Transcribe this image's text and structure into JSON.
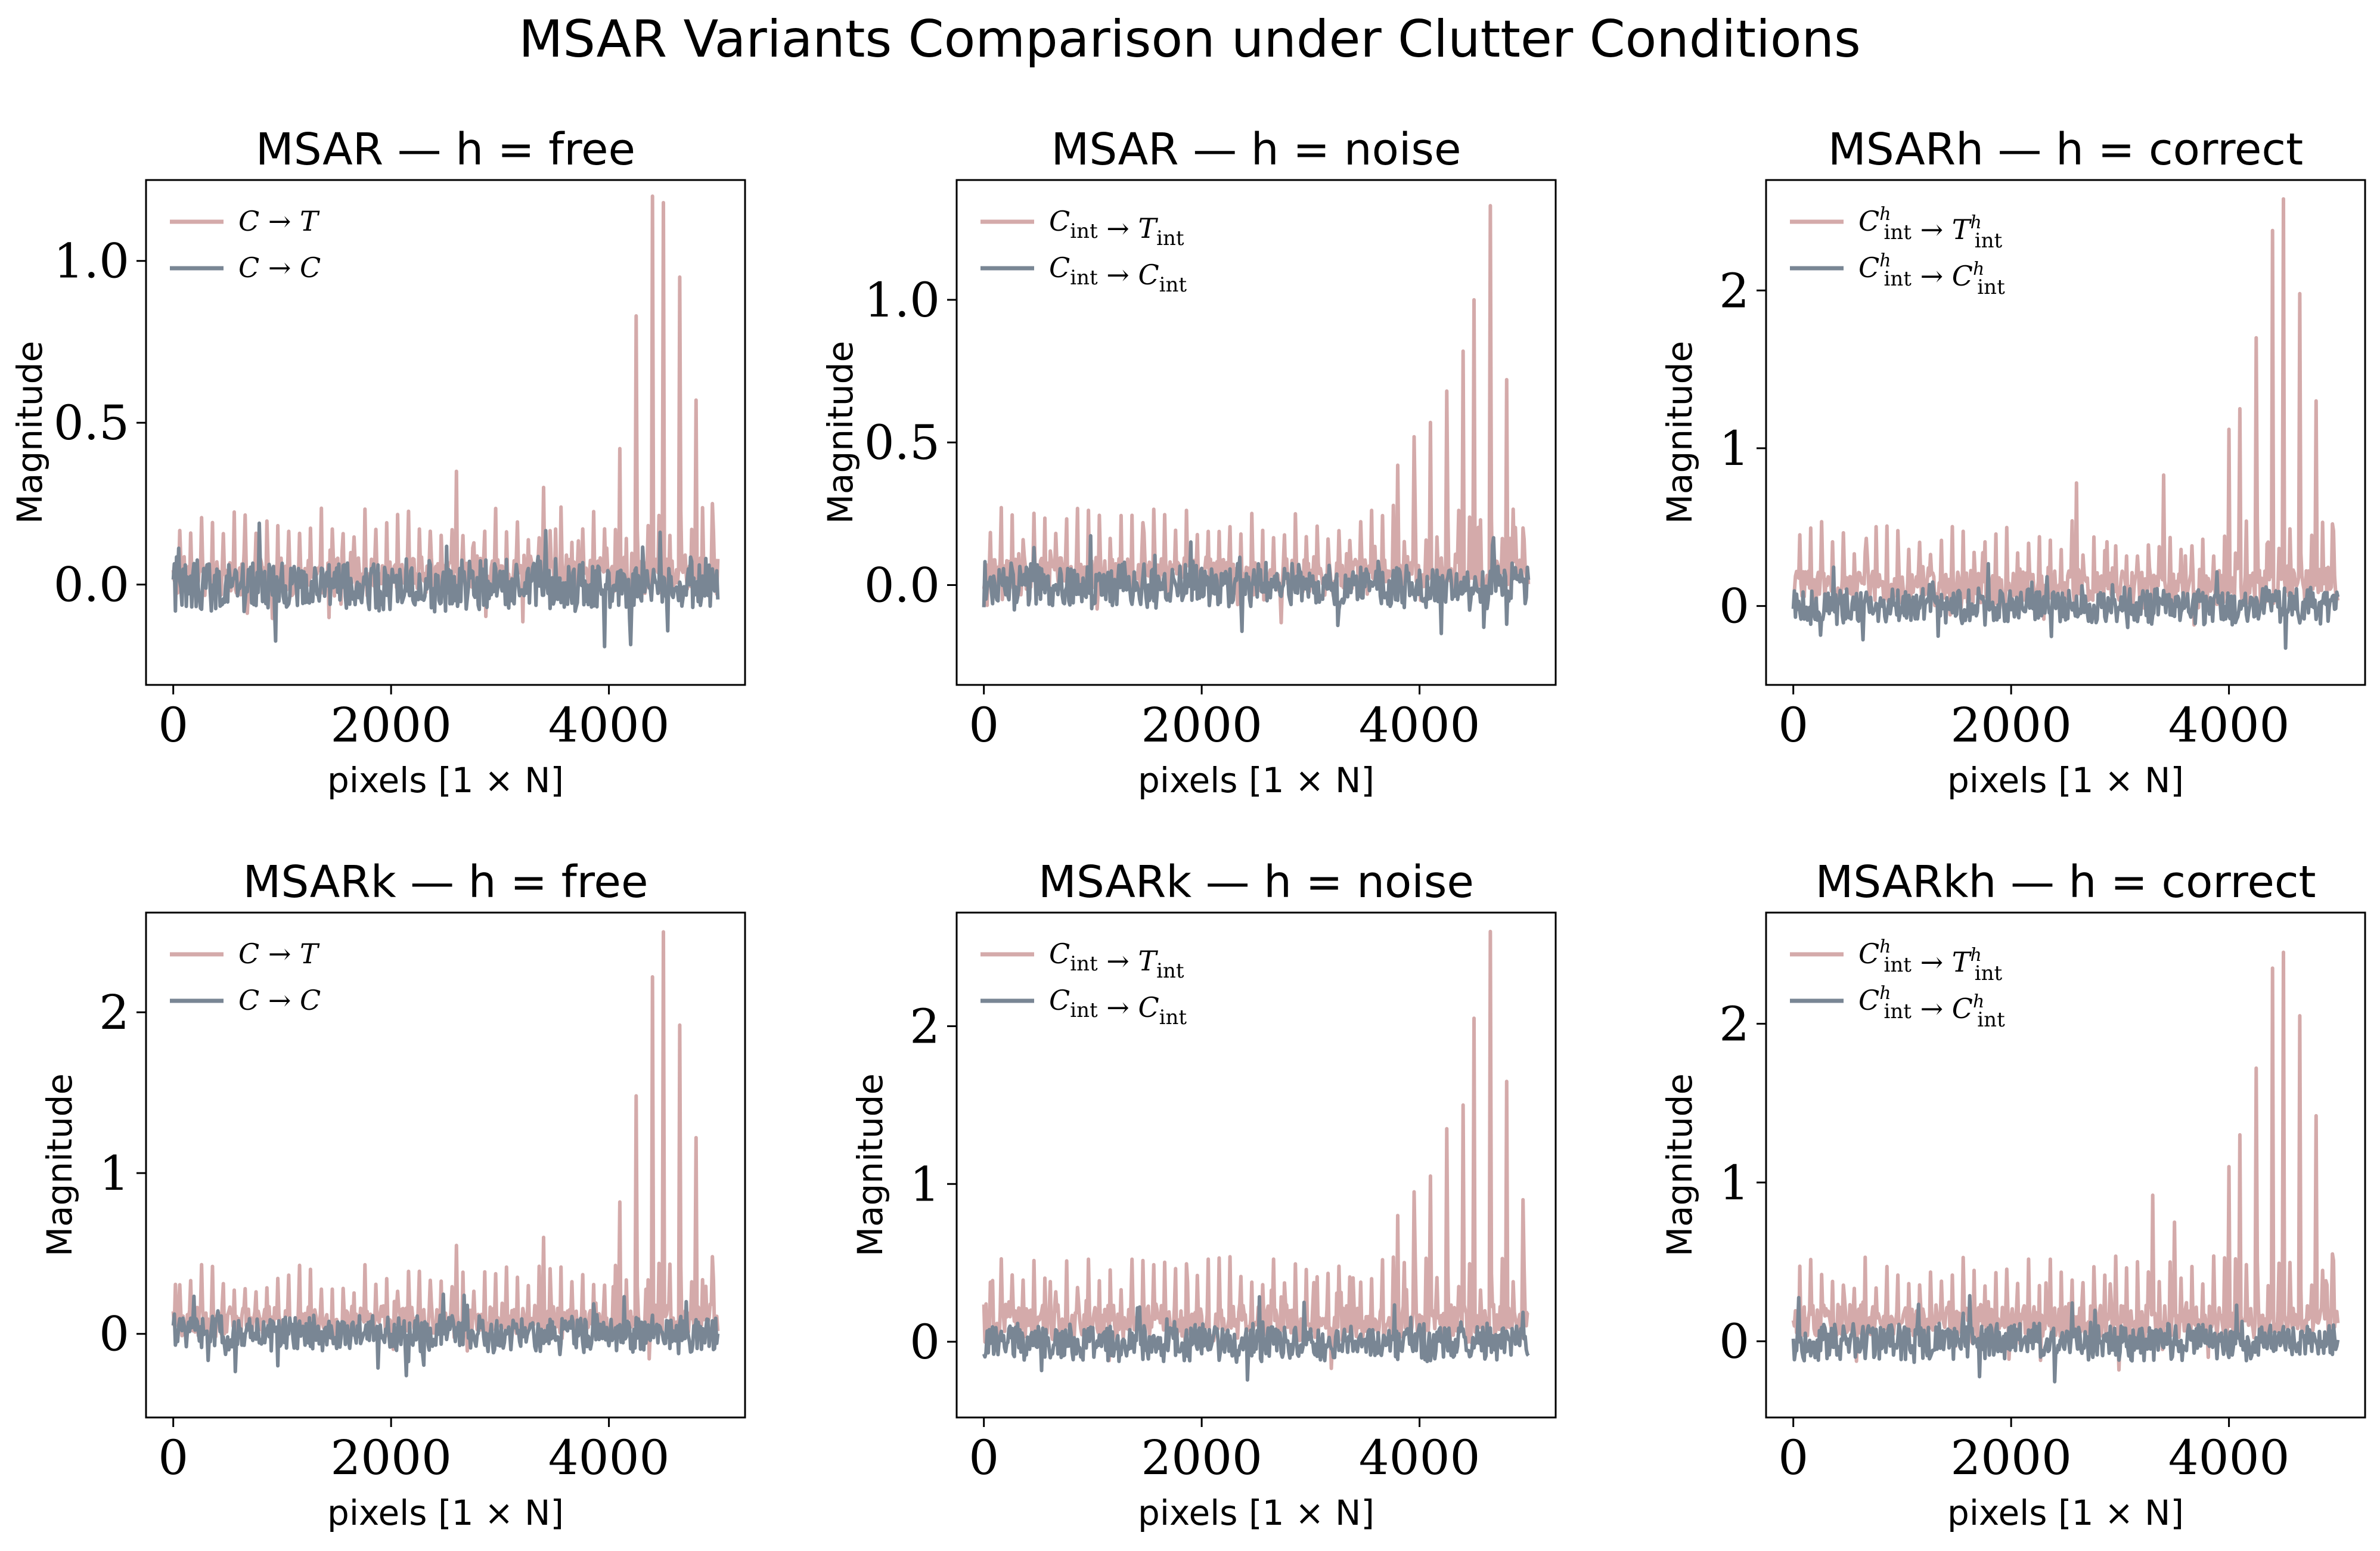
{
  "figure_title": "MSAR Variants Comparison under Clutter Conditions",
  "colors": {
    "ct": "#d4aaaa",
    "cc": "#798694"
  },
  "chart_data": [
    {
      "type": "line",
      "title": "MSAR — h = free",
      "xlabel": "pixels [1 × N]",
      "ylabel": "Magnitude",
      "xlim": [
        -250,
        5250
      ],
      "ylim": [
        -0.31,
        1.25
      ],
      "xticks": [
        0,
        2000,
        4000
      ],
      "xtick_labels": [
        "0",
        "2000",
        "4000"
      ],
      "yticks": [
        0,
        0.5,
        1.0
      ],
      "ytick_labels": [
        "0.0",
        "0.5",
        "1.0"
      ],
      "legend_loc": "upper-left",
      "series": [
        {
          "name": "C → T",
          "color_key": "ct",
          "baseline": 0.03,
          "noise": 0.07,
          "peak_max": 1.2,
          "peaks": [
            [
              2600,
              0.35
            ],
            [
              3400,
              0.3
            ],
            [
              4100,
              0.42
            ],
            [
              4250,
              0.83
            ],
            [
              4400,
              1.2
            ],
            [
              4500,
              1.18
            ],
            [
              4650,
              0.95
            ],
            [
              4800,
              0.57
            ],
            [
              4950,
              0.25
            ]
          ]
        },
        {
          "name": "C → C",
          "color_key": "cc",
          "baseline": 0.0,
          "noise": 0.09,
          "peak_max": 0.24,
          "peaks": []
        }
      ]
    },
    {
      "type": "line",
      "title": "MSAR — h = noise",
      "xlabel": "pixels [1 × N]",
      "ylabel": "Magnitude",
      "xlim": [
        -250,
        5250
      ],
      "ylim": [
        -0.35,
        1.42
      ],
      "xticks": [
        0,
        2000,
        4000
      ],
      "xtick_labels": [
        "0",
        "2000",
        "4000"
      ],
      "yticks": [
        0,
        0.5,
        1.0
      ],
      "ytick_labels": [
        "0.0",
        "0.5",
        "1.0"
      ],
      "legend_loc": "upper-left",
      "series": [
        {
          "name": "C_int → T_int",
          "color_key": "ct",
          "baseline": 0.04,
          "noise": 0.08,
          "peak_max": 1.33,
          "peaks": [
            [
              3800,
              0.42
            ],
            [
              3950,
              0.52
            ],
            [
              4100,
              0.57
            ],
            [
              4250,
              0.68
            ],
            [
              4400,
              0.82
            ],
            [
              4500,
              1.0
            ],
            [
              4650,
              1.33
            ],
            [
              4800,
              0.72
            ],
            [
              4950,
              0.2
            ]
          ]
        },
        {
          "name": "C_int → C_int",
          "color_key": "cc",
          "baseline": 0.0,
          "noise": 0.09,
          "peak_max": 0.25,
          "peaks": []
        }
      ]
    },
    {
      "type": "line",
      "title": "MSARh — h = correct",
      "xlabel": "pixels [1 × N]",
      "ylabel": "Magnitude",
      "xlim": [
        -250,
        5250
      ],
      "ylim": [
        -0.5,
        2.7
      ],
      "xticks": [
        0,
        2000,
        4000
      ],
      "xtick_labels": [
        "0",
        "2000",
        "4000"
      ],
      "yticks": [
        0,
        1,
        2
      ],
      "ytick_labels": [
        "0",
        "1",
        "2"
      ],
      "legend_loc": "upper-left",
      "series": [
        {
          "name": "C^h_int → T^h_int",
          "color_key": "ct",
          "baseline": 0.12,
          "noise": 0.14,
          "peak_max": 2.58,
          "peaks": [
            [
              2600,
              0.78
            ],
            [
              3400,
              0.83
            ],
            [
              4000,
              1.12
            ],
            [
              4100,
              1.25
            ],
            [
              4250,
              1.7
            ],
            [
              4400,
              2.38
            ],
            [
              4500,
              2.58
            ],
            [
              4650,
              1.98
            ],
            [
              4800,
              1.3
            ],
            [
              4950,
              0.52
            ]
          ]
        },
        {
          "name": "C^h_int → C^h_int",
          "color_key": "cc",
          "baseline": 0.0,
          "noise": 0.13,
          "peak_max": 0.3,
          "peaks": []
        }
      ]
    },
    {
      "type": "line",
      "title": "MSARk — h = free",
      "xlabel": "pixels [1 × N]",
      "ylabel": "Magnitude",
      "xlim": [
        -250,
        5250
      ],
      "ylim": [
        -0.52,
        2.62
      ],
      "xticks": [
        0,
        2000,
        4000
      ],
      "xtick_labels": [
        "0",
        "2000",
        "4000"
      ],
      "yticks": [
        0,
        1,
        2
      ],
      "ytick_labels": [
        "0",
        "1",
        "2"
      ],
      "legend_loc": "upper-left",
      "series": [
        {
          "name": "C → T",
          "color_key": "ct",
          "baseline": 0.08,
          "noise": 0.12,
          "peak_max": 2.5,
          "peaks": [
            [
              2600,
              0.55
            ],
            [
              3400,
              0.6
            ],
            [
              4100,
              0.82
            ],
            [
              4250,
              1.48
            ],
            [
              4400,
              2.22
            ],
            [
              4500,
              2.5
            ],
            [
              4650,
              1.92
            ],
            [
              4800,
              1.22
            ],
            [
              4950,
              0.48
            ]
          ]
        },
        {
          "name": "C → C",
          "color_key": "cc",
          "baseline": 0.0,
          "noise": 0.13,
          "peak_max": 0.3,
          "peaks": []
        }
      ]
    },
    {
      "type": "line",
      "title": "MSARk — h = noise",
      "xlabel": "pixels [1 × N]",
      "ylabel": "Magnitude",
      "xlim": [
        -250,
        5250
      ],
      "ylim": [
        -0.48,
        2.72
      ],
      "xticks": [
        0,
        2000,
        4000
      ],
      "xtick_labels": [
        "0",
        "2000",
        "4000"
      ],
      "yticks": [
        0,
        1,
        2
      ],
      "ytick_labels": [
        "0",
        "1",
        "2"
      ],
      "legend_loc": "upper-left",
      "series": [
        {
          "name": "C_int → T_int",
          "color_key": "ct",
          "baseline": 0.12,
          "noise": 0.14,
          "peak_max": 2.6,
          "peaks": [
            [
              3800,
              0.8
            ],
            [
              3950,
              0.95
            ],
            [
              4100,
              1.05
            ],
            [
              4250,
              1.35
            ],
            [
              4400,
              1.5
            ],
            [
              4500,
              2.05
            ],
            [
              4650,
              2.6
            ],
            [
              4800,
              1.65
            ],
            [
              4950,
              0.9
            ]
          ]
        },
        {
          "name": "C_int → C_int",
          "color_key": "cc",
          "baseline": 0.0,
          "noise": 0.13,
          "peak_max": 0.3,
          "peaks": []
        }
      ]
    },
    {
      "type": "line",
      "title": "MSARkh — h = correct",
      "xlabel": "pixels [1 × N]",
      "ylabel": "Magnitude",
      "xlim": [
        -250,
        5250
      ],
      "ylim": [
        -0.48,
        2.7
      ],
      "xticks": [
        0,
        2000,
        4000
      ],
      "xtick_labels": [
        "0",
        "2000",
        "4000"
      ],
      "yticks": [
        0,
        1,
        2
      ],
      "ytick_labels": [
        "0",
        "1",
        "2"
      ],
      "legend_loc": "upper-left",
      "series": [
        {
          "name": "C^h_int → T^h_int",
          "color_key": "ct",
          "baseline": 0.12,
          "noise": 0.14,
          "peak_max": 2.45,
          "peaks": [
            [
              3300,
              0.92
            ],
            [
              3500,
              0.75
            ],
            [
              4000,
              1.1
            ],
            [
              4100,
              1.3
            ],
            [
              4250,
              1.72
            ],
            [
              4400,
              2.35
            ],
            [
              4500,
              2.45
            ],
            [
              4650,
              2.05
            ],
            [
              4800,
              1.42
            ],
            [
              4950,
              0.55
            ]
          ]
        },
        {
          "name": "C^h_int → C^h_int",
          "color_key": "cc",
          "baseline": 0.0,
          "noise": 0.13,
          "peak_max": 0.3,
          "peaks": []
        }
      ]
    }
  ]
}
